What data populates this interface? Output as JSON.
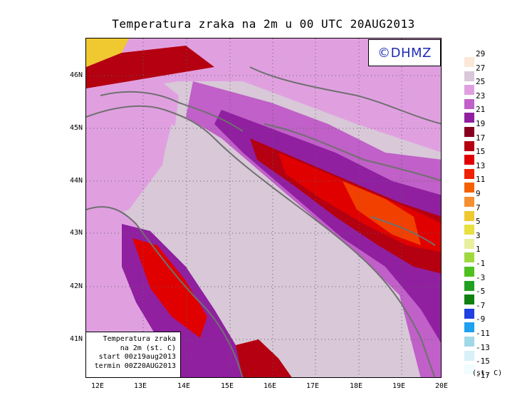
{
  "title": "Temperatura zraka na 2m u 00 UTC 20AUG2013",
  "logo": "©DHMZ",
  "info": {
    "line1": "Temperatura zraka",
    "line2": "na 2m (st. C)",
    "line3": "start 00z19aug2013",
    "line4": "termin 00Z20AUG2013"
  },
  "lat_labels": [
    "46N",
    "45N",
    "44N",
    "43N",
    "42N",
    "41N"
  ],
  "lon_labels": [
    "12E",
    "13E",
    "14E",
    "15E",
    "16E",
    "17E",
    "18E",
    "19E",
    "20E"
  ],
  "legend": {
    "unit": "(st. C)",
    "labels": [
      "29",
      "27",
      "25",
      "23",
      "21",
      "19",
      "17",
      "15",
      "13",
      "11",
      "9",
      "7",
      "5",
      "3",
      "1",
      "-1",
      "-3",
      "-5",
      "-7",
      "-9",
      "-11",
      "-13",
      "-15",
      "-17"
    ],
    "colors": [
      "#fce8d8",
      "#d8c8d8",
      "#e0a0e0",
      "#c060c8",
      "#9020a0",
      "#880020",
      "#b40010",
      "#e00000",
      "#f02000",
      "#f46000",
      "#f49030",
      "#f0c830",
      "#e8e040",
      "#e8f0a0",
      "#a0d840",
      "#50c020",
      "#20a020",
      "#108010",
      "#2040e0",
      "#20a0f0",
      "#a0d8e8",
      "#d8f0f8",
      "#f0fcff"
    ]
  },
  "map": {
    "sea_color": "#d8c8d8",
    "warm_colors": [
      "#e0a0e0",
      "#c060c8",
      "#9020a0",
      "#b40010",
      "#e00000",
      "#f24000"
    ],
    "coast_color": "#707070"
  }
}
